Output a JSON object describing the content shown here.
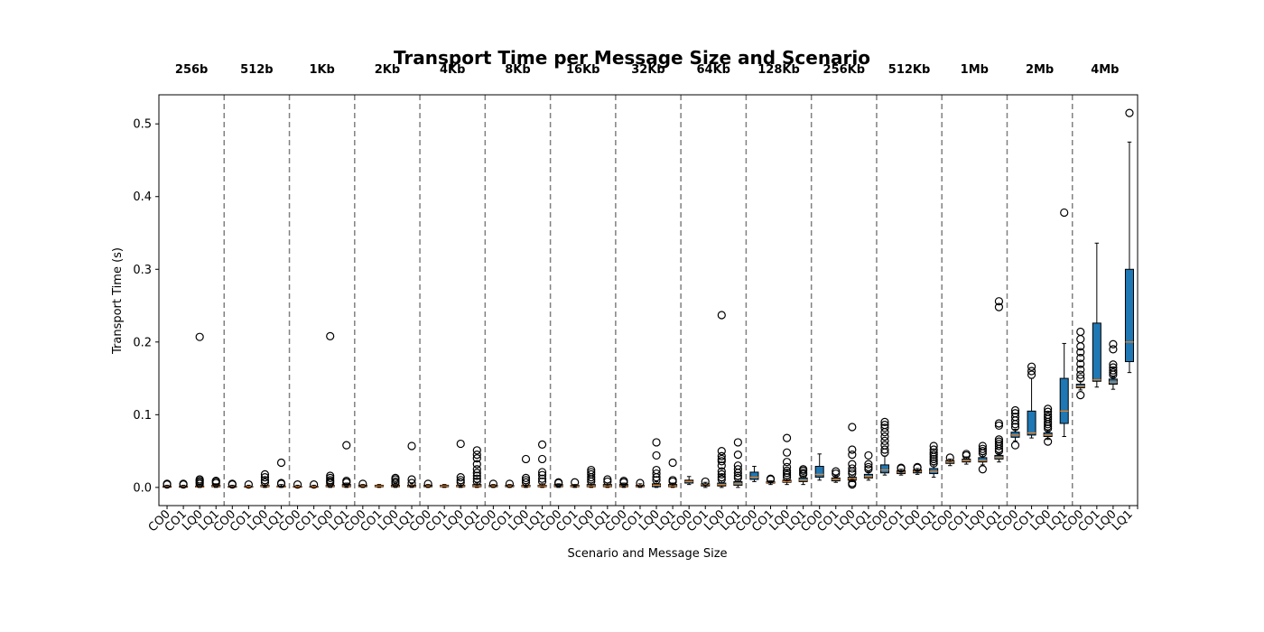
{
  "chart_data": {
    "type": "box",
    "title": "Transport Time per Message Size and Scenario",
    "xlabel": "Scenario and Message Size",
    "ylabel": "Transport Time (s)",
    "ylim": [
      -0.025,
      0.54
    ],
    "yticks": [
      "0.0",
      "0.1",
      "0.2",
      "0.3",
      "0.4",
      "0.5"
    ],
    "ytick_values": [
      0.0,
      0.1,
      0.2,
      0.3,
      0.4,
      0.5
    ],
    "grid": false,
    "scenarios": [
      "CO0",
      "CO1",
      "LQ0",
      "LQ1"
    ],
    "groups": [
      "256b",
      "512b",
      "1Kb",
      "2Kb",
      "4Kb",
      "8Kb",
      "16Kb",
      "32Kb",
      "64Kb",
      "128Kb",
      "256Kb",
      "512Kb",
      "1Mb",
      "2Mb",
      "4Mb"
    ],
    "boxes": [
      {
        "group": "256b",
        "scenario": "CO0",
        "whislo": 0.0,
        "q1": 0.0005,
        "median": 0.001,
        "q3": 0.0015,
        "whishi": 0.003,
        "fliers": [
          0.004,
          0.005
        ]
      },
      {
        "group": "256b",
        "scenario": "CO1",
        "whislo": 0.0,
        "q1": 0.0005,
        "median": 0.001,
        "q3": 0.0015,
        "whishi": 0.003,
        "fliers": [
          0.004,
          0.005
        ]
      },
      {
        "group": "256b",
        "scenario": "LQ0",
        "whislo": 0.0,
        "q1": 0.0005,
        "median": 0.001,
        "q3": 0.002,
        "whishi": 0.004,
        "fliers": [
          0.005,
          0.007,
          0.009,
          0.011,
          0.207
        ]
      },
      {
        "group": "256b",
        "scenario": "LQ1",
        "whislo": 0.0,
        "q1": 0.001,
        "median": 0.002,
        "q3": 0.003,
        "whishi": 0.005,
        "fliers": [
          0.006,
          0.008,
          0.009
        ]
      },
      {
        "group": "512b",
        "scenario": "CO0",
        "whislo": 0.0,
        "q1": 0.0005,
        "median": 0.001,
        "q3": 0.0015,
        "whishi": 0.003,
        "fliers": [
          0.004,
          0.005
        ]
      },
      {
        "group": "512b",
        "scenario": "CO1",
        "whislo": 0.0,
        "q1": 0.0005,
        "median": 0.001,
        "q3": 0.0015,
        "whishi": 0.003,
        "fliers": [
          0.004
        ]
      },
      {
        "group": "512b",
        "scenario": "LQ0",
        "whislo": 0.0,
        "q1": 0.001,
        "median": 0.002,
        "q3": 0.003,
        "whishi": 0.005,
        "fliers": [
          0.007,
          0.01,
          0.014,
          0.018
        ]
      },
      {
        "group": "512b",
        "scenario": "LQ1",
        "whislo": 0.0,
        "q1": 0.0005,
        "median": 0.001,
        "q3": 0.002,
        "whishi": 0.004,
        "fliers": [
          0.005,
          0.006,
          0.034
        ]
      },
      {
        "group": "1Kb",
        "scenario": "CO0",
        "whislo": 0.0,
        "q1": 0.0005,
        "median": 0.001,
        "q3": 0.0015,
        "whishi": 0.003,
        "fliers": [
          0.004
        ]
      },
      {
        "group": "1Kb",
        "scenario": "CO1",
        "whislo": 0.0,
        "q1": 0.0005,
        "median": 0.001,
        "q3": 0.0015,
        "whishi": 0.003,
        "fliers": [
          0.004
        ]
      },
      {
        "group": "1Kb",
        "scenario": "LQ0",
        "whislo": 0.0,
        "q1": 0.001,
        "median": 0.002,
        "q3": 0.003,
        "whishi": 0.005,
        "fliers": [
          0.006,
          0.008,
          0.01,
          0.013,
          0.016,
          0.208
        ]
      },
      {
        "group": "1Kb",
        "scenario": "LQ1",
        "whislo": 0.0,
        "q1": 0.001,
        "median": 0.002,
        "q3": 0.004,
        "whishi": 0.006,
        "fliers": [
          0.007,
          0.009,
          0.058
        ]
      },
      {
        "group": "2Kb",
        "scenario": "CO0",
        "whislo": 0.0,
        "q1": 0.001,
        "median": 0.002,
        "q3": 0.003,
        "whishi": 0.004,
        "fliers": [
          0.005
        ]
      },
      {
        "group": "2Kb",
        "scenario": "CO1",
        "whislo": 0.0,
        "q1": 0.001,
        "median": 0.002,
        "q3": 0.003,
        "whishi": 0.004,
        "fliers": []
      },
      {
        "group": "2Kb",
        "scenario": "LQ0",
        "whislo": 0.0,
        "q1": 0.001,
        "median": 0.002,
        "q3": 0.003,
        "whishi": 0.005,
        "fliers": [
          0.006,
          0.008,
          0.011,
          0.013
        ]
      },
      {
        "group": "2Kb",
        "scenario": "LQ1",
        "whislo": 0.0,
        "q1": 0.001,
        "median": 0.002,
        "q3": 0.003,
        "whishi": 0.005,
        "fliers": [
          0.006,
          0.011,
          0.057
        ]
      },
      {
        "group": "4Kb",
        "scenario": "CO0",
        "whislo": 0.0,
        "q1": 0.001,
        "median": 0.002,
        "q3": 0.003,
        "whishi": 0.004,
        "fliers": [
          0.005
        ]
      },
      {
        "group": "4Kb",
        "scenario": "CO1",
        "whislo": 0.0,
        "q1": 0.001,
        "median": 0.002,
        "q3": 0.003,
        "whishi": 0.004,
        "fliers": []
      },
      {
        "group": "4Kb",
        "scenario": "LQ0",
        "whislo": 0.0,
        "q1": 0.001,
        "median": 0.002,
        "q3": 0.003,
        "whishi": 0.005,
        "fliers": [
          0.007,
          0.01,
          0.014,
          0.06
        ]
      },
      {
        "group": "4Kb",
        "scenario": "LQ1",
        "whislo": 0.0,
        "q1": 0.001,
        "median": 0.002,
        "q3": 0.004,
        "whishi": 0.006,
        "fliers": [
          0.008,
          0.012,
          0.016,
          0.02,
          0.025,
          0.032,
          0.04,
          0.045,
          0.051
        ]
      },
      {
        "group": "8Kb",
        "scenario": "CO0",
        "whislo": 0.0,
        "q1": 0.001,
        "median": 0.002,
        "q3": 0.003,
        "whishi": 0.004,
        "fliers": [
          0.005
        ]
      },
      {
        "group": "8Kb",
        "scenario": "CO1",
        "whislo": 0.0,
        "q1": 0.001,
        "median": 0.002,
        "q3": 0.003,
        "whishi": 0.004,
        "fliers": [
          0.005
        ]
      },
      {
        "group": "8Kb",
        "scenario": "LQ0",
        "whislo": 0.0,
        "q1": 0.001,
        "median": 0.002,
        "q3": 0.003,
        "whishi": 0.005,
        "fliers": [
          0.007,
          0.01,
          0.013,
          0.039
        ]
      },
      {
        "group": "8Kb",
        "scenario": "LQ1",
        "whislo": 0.0,
        "q1": 0.001,
        "median": 0.002,
        "q3": 0.003,
        "whishi": 0.005,
        "fliers": [
          0.008,
          0.012,
          0.017,
          0.021,
          0.039,
          0.059
        ]
      },
      {
        "group": "16Kb",
        "scenario": "CO0",
        "whislo": 0.0,
        "q1": 0.001,
        "median": 0.002,
        "q3": 0.004,
        "whishi": 0.005,
        "fliers": [
          0.006,
          0.007
        ]
      },
      {
        "group": "16Kb",
        "scenario": "CO1",
        "whislo": 0.0,
        "q1": 0.001,
        "median": 0.002,
        "q3": 0.003,
        "whishi": 0.004,
        "fliers": [
          0.007
        ]
      },
      {
        "group": "16Kb",
        "scenario": "LQ0",
        "whislo": 0.0,
        "q1": 0.001,
        "median": 0.002,
        "q3": 0.004,
        "whishi": 0.006,
        "fliers": [
          0.008,
          0.011,
          0.014,
          0.018,
          0.021,
          0.024
        ]
      },
      {
        "group": "16Kb",
        "scenario": "LQ1",
        "whislo": 0.0,
        "q1": 0.001,
        "median": 0.002,
        "q3": 0.004,
        "whishi": 0.006,
        "fliers": [
          0.008,
          0.011
        ]
      },
      {
        "group": "32Kb",
        "scenario": "CO0",
        "whislo": 0.0,
        "q1": 0.001,
        "median": 0.002,
        "q3": 0.004,
        "whishi": 0.006,
        "fliers": [
          0.007,
          0.009
        ]
      },
      {
        "group": "32Kb",
        "scenario": "CO1",
        "whislo": 0.0,
        "q1": 0.001,
        "median": 0.002,
        "q3": 0.003,
        "whishi": 0.005,
        "fliers": [
          0.006
        ]
      },
      {
        "group": "32Kb",
        "scenario": "LQ0",
        "whislo": 0.0,
        "q1": 0.001,
        "median": 0.003,
        "q3": 0.005,
        "whishi": 0.008,
        "fliers": [
          0.01,
          0.014,
          0.019,
          0.024,
          0.044,
          0.062
        ]
      },
      {
        "group": "32Kb",
        "scenario": "LQ1",
        "whislo": 0.0,
        "q1": 0.001,
        "median": 0.002,
        "q3": 0.004,
        "whishi": 0.006,
        "fliers": [
          0.008,
          0.01,
          0.034
        ]
      },
      {
        "group": "64Kb",
        "scenario": "CO0",
        "whislo": 0.004,
        "q1": 0.006,
        "median": 0.008,
        "q3": 0.01,
        "whishi": 0.015,
        "fliers": []
      },
      {
        "group": "64Kb",
        "scenario": "CO1",
        "whislo": 0.0,
        "q1": 0.002,
        "median": 0.004,
        "q3": 0.005,
        "whishi": 0.007,
        "fliers": [
          0.008
        ]
      },
      {
        "group": "64Kb",
        "scenario": "LQ0",
        "whislo": 0.0,
        "q1": 0.002,
        "median": 0.004,
        "q3": 0.006,
        "whishi": 0.009,
        "fliers": [
          0.011,
          0.014,
          0.018,
          0.022,
          0.03,
          0.036,
          0.039,
          0.043,
          0.05,
          0.237
        ]
      },
      {
        "group": "64Kb",
        "scenario": "LQ1",
        "whislo": 0.0,
        "q1": 0.003,
        "median": 0.005,
        "q3": 0.008,
        "whishi": 0.011,
        "fliers": [
          0.013,
          0.016,
          0.02,
          0.025,
          0.03,
          0.045,
          0.062
        ]
      },
      {
        "group": "128Kb",
        "scenario": "CO0",
        "whislo": 0.008,
        "q1": 0.011,
        "median": 0.014,
        "q3": 0.021,
        "whishi": 0.029,
        "fliers": []
      },
      {
        "group": "128Kb",
        "scenario": "CO1",
        "whislo": 0.004,
        "q1": 0.006,
        "median": 0.007,
        "q3": 0.008,
        "whishi": 0.009,
        "fliers": [
          0.011,
          0.012
        ]
      },
      {
        "group": "128Kb",
        "scenario": "LQ0",
        "whislo": 0.004,
        "q1": 0.007,
        "median": 0.008,
        "q3": 0.01,
        "whishi": 0.012,
        "fliers": [
          0.014,
          0.017,
          0.02,
          0.023,
          0.028,
          0.035,
          0.048,
          0.068
        ]
      },
      {
        "group": "128Kb",
        "scenario": "LQ1",
        "whislo": 0.004,
        "q1": 0.008,
        "median": 0.01,
        "q3": 0.013,
        "whishi": 0.016,
        "fliers": [
          0.018,
          0.02,
          0.023,
          0.025
        ]
      },
      {
        "group": "256Kb",
        "scenario": "CO0",
        "whislo": 0.01,
        "q1": 0.014,
        "median": 0.018,
        "q3": 0.029,
        "whishi": 0.046,
        "fliers": []
      },
      {
        "group": "256Kb",
        "scenario": "CO1",
        "whislo": 0.007,
        "q1": 0.009,
        "median": 0.011,
        "q3": 0.013,
        "whishi": 0.016,
        "fliers": [
          0.019,
          0.022
        ]
      },
      {
        "group": "256Kb",
        "scenario": "LQ0",
        "whislo": 0.008,
        "q1": 0.01,
        "median": 0.012,
        "q3": 0.014,
        "whishi": 0.017,
        "fliers": [
          0.004,
          0.006,
          0.019,
          0.022,
          0.026,
          0.032,
          0.045,
          0.052,
          0.083
        ]
      },
      {
        "group": "256Kb",
        "scenario": "LQ1",
        "whislo": 0.01,
        "q1": 0.013,
        "median": 0.015,
        "q3": 0.018,
        "whishi": 0.022,
        "fliers": [
          0.025,
          0.028,
          0.032,
          0.044
        ]
      },
      {
        "group": "512Kb",
        "scenario": "CO0",
        "whislo": 0.017,
        "q1": 0.02,
        "median": 0.024,
        "q3": 0.031,
        "whishi": 0.043,
        "fliers": [
          0.048,
          0.052,
          0.058,
          0.064,
          0.07,
          0.076,
          0.082,
          0.086,
          0.09
        ]
      },
      {
        "group": "512Kb",
        "scenario": "CO1",
        "whislo": 0.017,
        "q1": 0.019,
        "median": 0.021,
        "q3": 0.023,
        "whishi": 0.025,
        "fliers": [
          0.026,
          0.027
        ]
      },
      {
        "group": "512Kb",
        "scenario": "LQ0",
        "whislo": 0.018,
        "q1": 0.02,
        "median": 0.022,
        "q3": 0.024,
        "whishi": 0.026,
        "fliers": [
          0.027,
          0.028
        ]
      },
      {
        "group": "512Kb",
        "scenario": "LQ1",
        "whislo": 0.014,
        "q1": 0.019,
        "median": 0.022,
        "q3": 0.026,
        "whishi": 0.031,
        "fliers": [
          0.033,
          0.036,
          0.039,
          0.042,
          0.045,
          0.048,
          0.052,
          0.057
        ]
      },
      {
        "group": "1Mb",
        "scenario": "CO0",
        "whislo": 0.03,
        "q1": 0.033,
        "median": 0.035,
        "q3": 0.037,
        "whishi": 0.039,
        "fliers": [
          0.041
        ]
      },
      {
        "group": "1Mb",
        "scenario": "CO1",
        "whislo": 0.032,
        "q1": 0.035,
        "median": 0.037,
        "q3": 0.039,
        "whishi": 0.042,
        "fliers": [
          0.044,
          0.046
        ]
      },
      {
        "group": "1Mb",
        "scenario": "LQ0",
        "whislo": 0.031,
        "q1": 0.035,
        "median": 0.037,
        "q3": 0.041,
        "whishi": 0.045,
        "fliers": [
          0.025,
          0.047,
          0.05,
          0.053,
          0.057
        ]
      },
      {
        "group": "1Mb",
        "scenario": "LQ1",
        "whislo": 0.035,
        "q1": 0.039,
        "median": 0.041,
        "q3": 0.044,
        "whishi": 0.047,
        "fliers": [
          0.05,
          0.053,
          0.057,
          0.06,
          0.063,
          0.066,
          0.085,
          0.088,
          0.248,
          0.256
        ]
      },
      {
        "group": "2Mb",
        "scenario": "CO0",
        "whislo": 0.064,
        "q1": 0.069,
        "median": 0.072,
        "q3": 0.076,
        "whishi": 0.08,
        "fliers": [
          0.058,
          0.083,
          0.087,
          0.092,
          0.097,
          0.102,
          0.106
        ]
      },
      {
        "group": "2Mb",
        "scenario": "CO1",
        "whislo": 0.068,
        "q1": 0.072,
        "median": 0.075,
        "q3": 0.105,
        "whishi": 0.15,
        "fliers": [
          0.155,
          0.16,
          0.166
        ]
      },
      {
        "group": "2Mb",
        "scenario": "LQ0",
        "whislo": 0.066,
        "q1": 0.07,
        "median": 0.072,
        "q3": 0.075,
        "whishi": 0.078,
        "fliers": [
          0.063,
          0.081,
          0.084,
          0.087,
          0.09,
          0.094,
          0.097,
          0.1,
          0.104,
          0.108
        ]
      },
      {
        "group": "2Mb",
        "scenario": "LQ1",
        "whislo": 0.07,
        "q1": 0.088,
        "median": 0.105,
        "q3": 0.15,
        "whishi": 0.198,
        "fliers": [
          0.378
        ]
      },
      {
        "group": "4Mb",
        "scenario": "CO0",
        "whislo": 0.134,
        "q1": 0.137,
        "median": 0.139,
        "q3": 0.142,
        "whishi": 0.146,
        "fliers": [
          0.127,
          0.15,
          0.155,
          0.162,
          0.17,
          0.178,
          0.186,
          0.194,
          0.204,
          0.214
        ]
      },
      {
        "group": "4Mb",
        "scenario": "CO1",
        "whislo": 0.138,
        "q1": 0.146,
        "median": 0.148,
        "q3": 0.226,
        "whishi": 0.336,
        "fliers": []
      },
      {
        "group": "4Mb",
        "scenario": "LQ0",
        "whislo": 0.135,
        "q1": 0.142,
        "median": 0.145,
        "q3": 0.149,
        "whishi": 0.152,
        "fliers": [
          0.155,
          0.158,
          0.161,
          0.165,
          0.169,
          0.19,
          0.197
        ]
      },
      {
        "group": "4Mb",
        "scenario": "LQ1",
        "whislo": 0.158,
        "q1": 0.173,
        "median": 0.2,
        "q3": 0.3,
        "whishi": 0.475,
        "fliers": [
          0.515
        ]
      }
    ],
    "colors": {
      "box_fill": "#1f77b4",
      "median": "#ff7f0e",
      "separator": "#808080",
      "axis": "#000000"
    }
  }
}
